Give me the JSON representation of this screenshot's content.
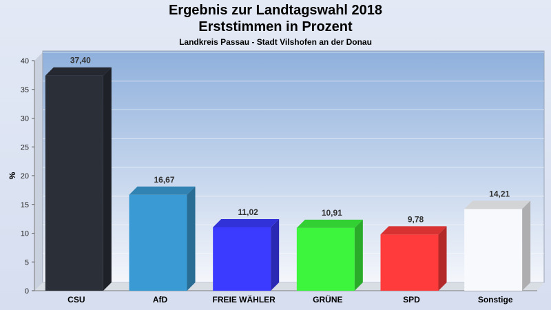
{
  "chart_data": {
    "type": "bar",
    "title": "Ergebnis zur Landtagswahl 2018",
    "subtitle": "Erststimmen in Prozent",
    "caption": "Landkreis Passau - Stadt Vilshofen an der Donau",
    "ylabel": "%",
    "ylim": [
      0,
      40
    ],
    "yticks": [
      0,
      5,
      10,
      15,
      20,
      25,
      30,
      35,
      40
    ],
    "categories": [
      "CSU",
      "AfD",
      "FREIE WÄHLER",
      "GRÜNE",
      "SPD",
      "Sonstige"
    ],
    "values": [
      37.4,
      16.67,
      11.02,
      10.91,
      9.78,
      14.21
    ],
    "value_labels": [
      "37,40",
      "16,67",
      "11,02",
      "10,91",
      "9,78",
      "14,21"
    ],
    "colors": [
      "#2b2f38",
      "#3a9ad4",
      "#3b3bff",
      "#3cf53c",
      "#ff3b3b",
      "#f8f9fc"
    ],
    "grid": true
  }
}
